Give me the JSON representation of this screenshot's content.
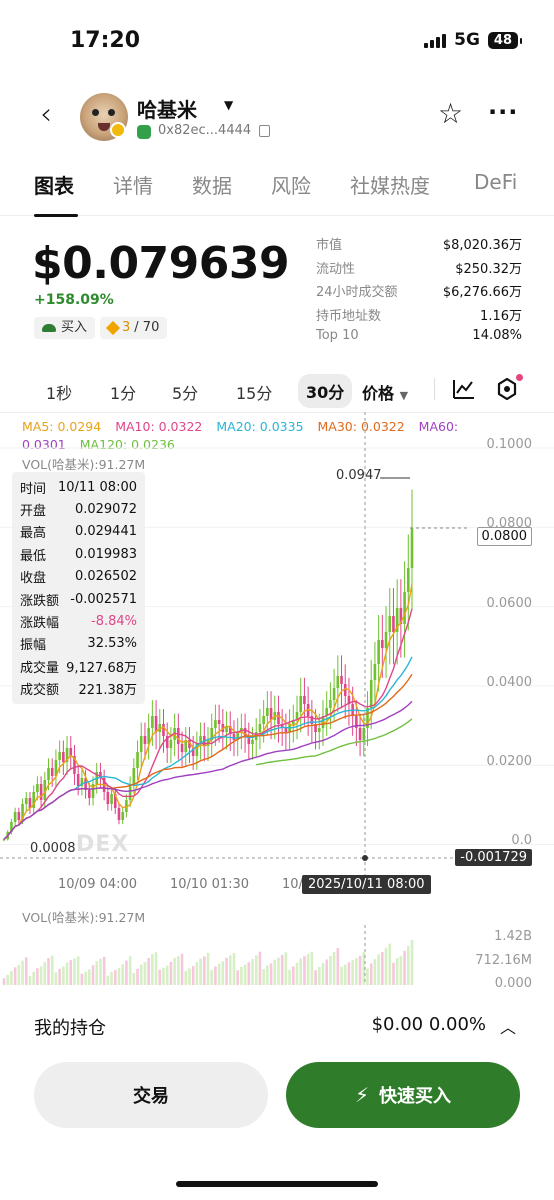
{
  "status_bar": {
    "time": "17:20",
    "network": "5G",
    "battery": "48"
  },
  "header": {
    "token_name": "哈基米",
    "address": "0x82ec...4444"
  },
  "tabs": [
    "图表",
    "详情",
    "数据",
    "风险",
    "社媒热度",
    "DeFi"
  ],
  "price": {
    "value": "$0.079639",
    "change": "+158.09%",
    "buy_label": "买入",
    "score": "3",
    "score_total": "/ 70"
  },
  "stats": [
    {
      "label": "市值",
      "value": "$8,020.36万"
    },
    {
      "label": "流动性",
      "value": "$250.32万"
    },
    {
      "label": "24小时成交额",
      "value": "$6,276.66万"
    },
    {
      "label": "持币地址数",
      "value": "1.16万"
    },
    {
      "label": "Top 10",
      "value": "14.08%"
    }
  ],
  "timeframes": [
    "1秒",
    "1分",
    "5分",
    "15分",
    "30分"
  ],
  "price_mode": "价格",
  "indicators": {
    "ma5": "MA5: 0.0294",
    "ma10": "MA10: 0.0322",
    "ma20": "MA20: 0.0335",
    "ma30": "MA30: 0.0322",
    "ma60": "MA60:",
    "ma60_value": "0.0301",
    "ma120": "MA120: 0.0236",
    "vol": "VOL(哈基米):91.27M",
    "colors": {
      "ma5": "#e8a317",
      "ma10": "#e0468a",
      "ma20": "#29b6d6",
      "ma30": "#e06a1a",
      "ma60": "#a040c0",
      "ma120": "#6fbf3f"
    }
  },
  "tooltip": [
    {
      "label": "时间",
      "value": "10/11 08:00"
    },
    {
      "label": "开盘",
      "value": "0.029072"
    },
    {
      "label": "最高",
      "value": "0.029441"
    },
    {
      "label": "最低",
      "value": "0.019983"
    },
    {
      "label": "收盘",
      "value": "0.026502"
    },
    {
      "label": "涨跌额",
      "value": "-0.002571"
    },
    {
      "label": "涨跌幅",
      "value": "-8.84%"
    },
    {
      "label": "振幅",
      "value": "32.53%"
    },
    {
      "label": "成交量",
      "value": "9,127.68万"
    },
    {
      "label": "成交额",
      "value": "221.38万"
    }
  ],
  "chart_data": {
    "type": "candlestick",
    "y_ticks": [
      "0.1000",
      "0.0800",
      "0.0600",
      "0.0400",
      "0.0200",
      "0.0"
    ],
    "x_ticks": [
      "10/09 04:00",
      "10/10 01:30",
      "10/"
    ],
    "high_marker": "0.0947",
    "low_marker": "0.0008",
    "current_price_tag": "0.0800",
    "crosshair_value": "-0.001729",
    "crosshair_date": "2025/10/11 08:00",
    "watermark": "DEX",
    "ylim": [
      0,
      0.1
    ],
    "closes": [
      0.0022,
      0.004,
      0.0065,
      0.009,
      0.007,
      0.011,
      0.0125,
      0.01,
      0.014,
      0.016,
      0.012,
      0.017,
      0.02,
      0.018,
      0.022,
      0.024,
      0.0215,
      0.025,
      0.023,
      0.0185,
      0.0155,
      0.0175,
      0.0145,
      0.0125,
      0.016,
      0.019,
      0.0175,
      0.014,
      0.011,
      0.0135,
      0.01,
      0.007,
      0.009,
      0.012,
      0.016,
      0.02,
      0.024,
      0.028,
      0.026,
      0.03,
      0.033,
      0.029,
      0.031,
      0.028,
      0.025,
      0.027,
      0.03,
      0.026,
      0.024,
      0.027,
      0.025,
      0.023,
      0.026,
      0.028,
      0.0255,
      0.027,
      0.03,
      0.032,
      0.031,
      0.029,
      0.0305,
      0.0285,
      0.027,
      0.029,
      0.03,
      0.028,
      0.026,
      0.027,
      0.029,
      0.031,
      0.033,
      0.035,
      0.032,
      0.034,
      0.031,
      0.03,
      0.029,
      0.031,
      0.032,
      0.034,
      0.038,
      0.036,
      0.033,
      0.031,
      0.029,
      0.03,
      0.033,
      0.035,
      0.037,
      0.04,
      0.043,
      0.041,
      0.038,
      0.036,
      0.033,
      0.03,
      0.027,
      0.03,
      0.035,
      0.042,
      0.046,
      0.052,
      0.05,
      0.054,
      0.058,
      0.054,
      0.06,
      0.056,
      0.064,
      0.07,
      0.08
    ],
    "volume_axis": [
      "1.42B",
      "712.16M",
      "0.000"
    ]
  },
  "position": {
    "title": "我的持仓",
    "value": "$0.00  0.00%"
  },
  "actions": {
    "trade": "交易",
    "quick_buy": "快速买入"
  }
}
